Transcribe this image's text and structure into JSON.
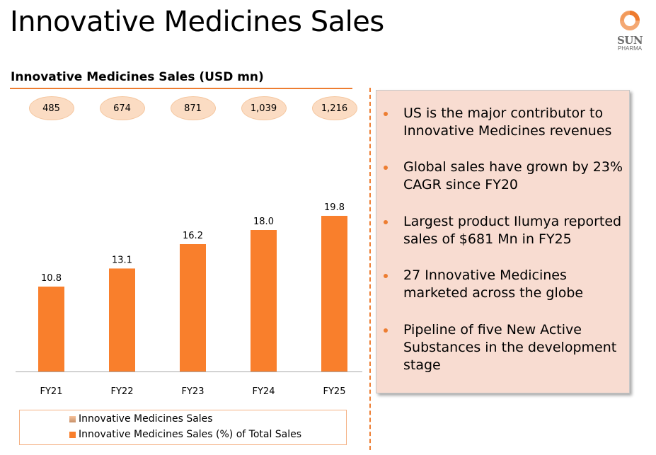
{
  "page": {
    "title": "Innovative Medicines Sales",
    "logo": {
      "icon": "sun-pharma-ring-icon",
      "brand_line1": "SUN",
      "brand_line2": "PHARMA"
    }
  },
  "chart_data": {
    "type": "bar",
    "title": "Innovative Medicines Sales (USD mn)",
    "categories": [
      "FY21",
      "FY22",
      "FY23",
      "FY24",
      "FY25"
    ],
    "series": [
      {
        "name": "Innovative Medicines Sales",
        "values": [
          485,
          674,
          871,
          1039,
          1216
        ],
        "labels": [
          "485",
          "674",
          "871",
          "1,039",
          "1,216"
        ],
        "display": "bubble",
        "color": "#fbdcc3"
      },
      {
        "name": "Innovative Medicines Sales (%) of Total Sales",
        "values": [
          10.8,
          13.1,
          16.2,
          18.0,
          19.8
        ],
        "labels": [
          "10.8",
          "13.1",
          "16.2",
          "18.0",
          "19.8"
        ],
        "display": "bar",
        "color": "#f97f2c"
      }
    ],
    "xlabel": "",
    "ylabel": "",
    "ylim": [
      0,
      21
    ],
    "grid": false,
    "legend": "bottom"
  },
  "panel": {
    "bullets": [
      "US is the major contributor to Innovative Medicines revenues",
      "Global sales have grown by 23% CAGR since FY20",
      "Largest product Ilumya reported sales of $681 Mn in FY25",
      "27 Innovative Medicines marketed across the globe",
      "Pipeline of five New Active Substances in the development stage"
    ]
  },
  "colors": {
    "accent": "#ed7d31",
    "bar": "#f97f2c",
    "bubble": "#fbdcc3",
    "panel_bg": "#f8dcd1"
  }
}
